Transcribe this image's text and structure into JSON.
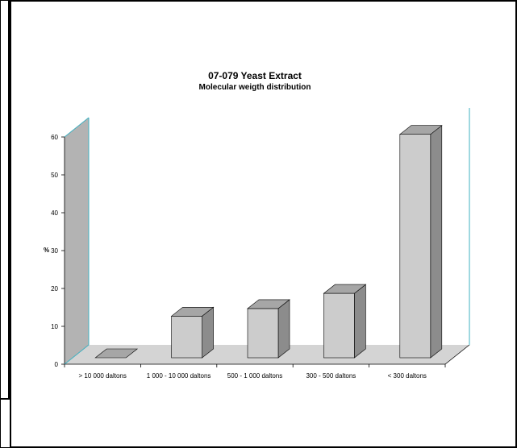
{
  "chart_data": {
    "type": "bar",
    "title": "07-079 Yeast Extract",
    "subtitle": "Molecular weigth distribution",
    "ylabel": "%",
    "xlabel": "",
    "categories": [
      "> 10 000 daltons",
      "1 000 - 10 000 daltons",
      "500 - 1 000 daltons",
      "300 - 500 daltons",
      "< 300 daltons"
    ],
    "values": [
      0,
      11,
      13,
      17,
      59
    ],
    "ylim": [
      0,
      60
    ],
    "yticks": [
      "0",
      "10",
      "20",
      "30",
      "40",
      "50",
      "60"
    ],
    "grid": false,
    "legend": "none",
    "style": "3d",
    "colors": {
      "bar_front": "#cccccc",
      "bar_side": "#8c8c8c",
      "bar_top": "#a6a6a6",
      "back_wall": "#b3b3b3",
      "floor": "#d4d4d4",
      "axis_line": "#3fb0c0"
    }
  }
}
